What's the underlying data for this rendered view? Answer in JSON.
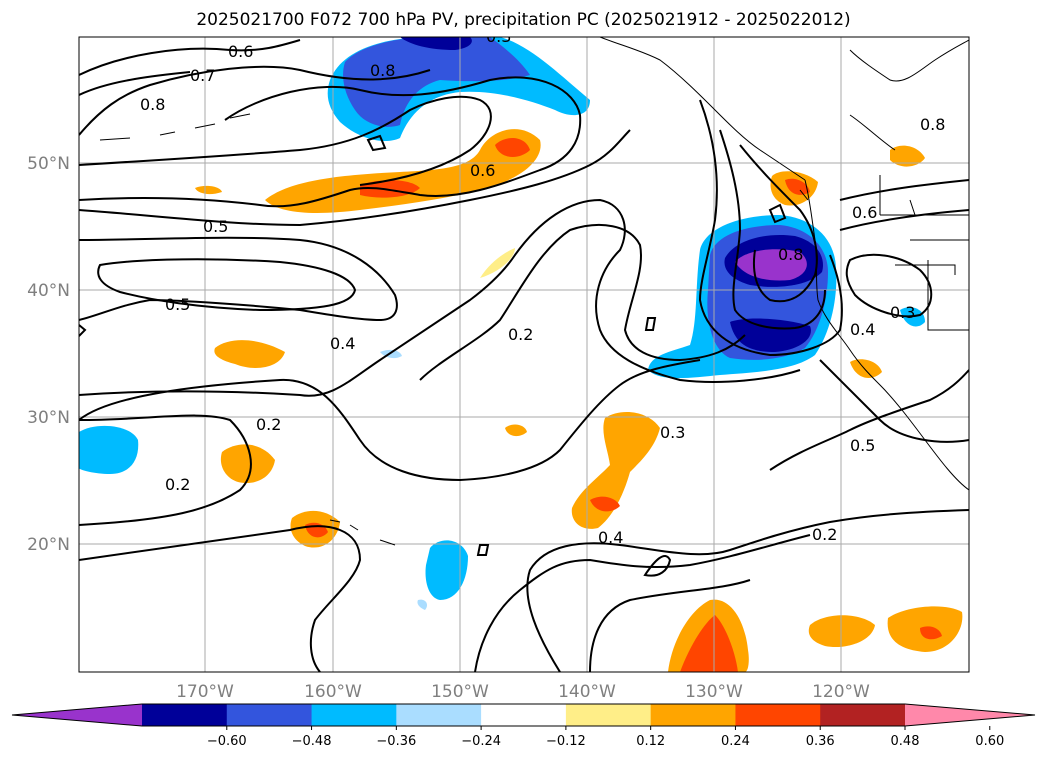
{
  "title": "2025021700 F072 700 hPa PV, precipitation PC (2025021912 - 2025022012)",
  "lat_labels": [
    "50°N",
    "40°N",
    "30°N",
    "20°N"
  ],
  "lon_labels": [
    "170°W",
    "160°W",
    "150°W",
    "140°W",
    "130°W",
    "120°W"
  ],
  "contour_labels": [
    "0.6",
    "0.7",
    "0.8",
    "0.5",
    "0.6",
    "0.5",
    "0.4",
    "0.2",
    "0.2",
    "0.2",
    "0.3",
    "0.4",
    "0.2",
    "0.5",
    "0.6",
    "0.8",
    "0.8",
    "0.4",
    "0.3",
    "0.8",
    "0.3"
  ],
  "colorbar": {
    "ticks": [
      "−0.60",
      "−0.48",
      "−0.36",
      "−0.24",
      "−0.12",
      "0.12",
      "0.24",
      "0.36",
      "0.48",
      "0.60"
    ],
    "colors": [
      "#9933cc",
      "#000099",
      "#3355dd",
      "#00bbff",
      "#aaddff",
      "#ffffff",
      "#ffee88",
      "#ffa500",
      "#ff4500",
      "#b22222",
      "#ff88aa"
    ]
  }
}
